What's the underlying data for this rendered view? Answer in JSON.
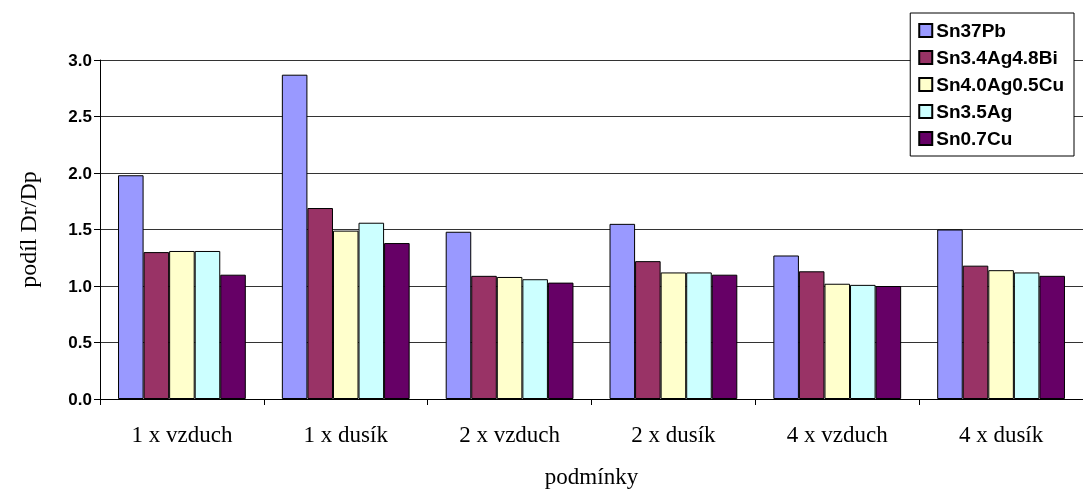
{
  "chart_data": {
    "type": "bar",
    "xlabel": "podmínky",
    "ylabel": "podíl Dr/Dp",
    "categories": [
      "1 x vzduch",
      "1 x dusík",
      "2 x vzduch",
      "2 x dusík",
      "4 x vzduch",
      "4 x dusík"
    ],
    "series": [
      {
        "name": "Sn37Pb",
        "color": "#9999ff",
        "values": [
          1.98,
          2.87,
          1.48,
          1.55,
          1.27,
          1.5
        ]
      },
      {
        "name": "Sn3.4Ag4.8Bi",
        "color": "#993366",
        "values": [
          1.3,
          1.69,
          1.09,
          1.22,
          1.13,
          1.18
        ]
      },
      {
        "name": "Sn4.0Ag0.5Cu",
        "color": "#ffffcc",
        "values": [
          1.31,
          1.49,
          1.08,
          1.12,
          1.02,
          1.14
        ]
      },
      {
        "name": "Sn3.5Ag",
        "color": "#ccffff",
        "values": [
          1.31,
          1.56,
          1.06,
          1.12,
          1.01,
          1.12
        ]
      },
      {
        "name": "Sn0.7Cu",
        "color": "#660066",
        "values": [
          1.1,
          1.38,
          1.03,
          1.1,
          1.0,
          1.09
        ]
      }
    ],
    "ylim": [
      0,
      3
    ],
    "yticks": [
      {
        "value": 0,
        "label": "0.0"
      },
      {
        "value": 0.5,
        "label": "0.5"
      },
      {
        "value": 1,
        "label": "1.0"
      },
      {
        "value": 1.5,
        "label": "1.5"
      },
      {
        "value": 2,
        "label": "2.0"
      },
      {
        "value": 2.5,
        "label": "2.5"
      },
      {
        "value": 3,
        "label": "3.0"
      }
    ],
    "grid": "y",
    "legend": "top right"
  }
}
